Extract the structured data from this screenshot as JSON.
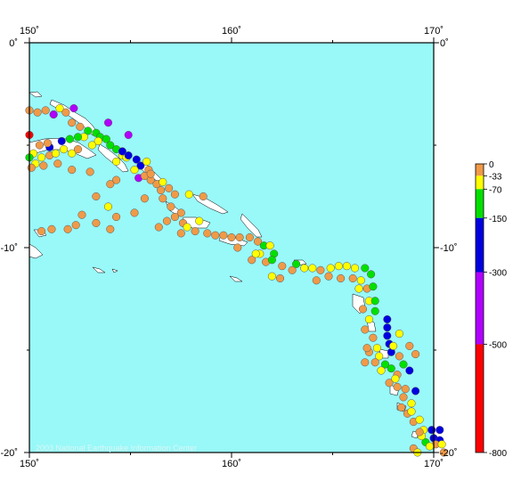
{
  "map": {
    "ocean_color": "#99f8f8",
    "land_color": "#ffffff",
    "frame_color": "#000000",
    "lon_range": [
      150,
      170
    ],
    "lat_range": [
      -20,
      0
    ],
    "lon_ticks": [
      {
        "value": 150,
        "label": "150˚"
      },
      {
        "value": 160,
        "label": "160˚"
      },
      {
        "value": 170,
        "label": "170˚"
      }
    ],
    "lat_ticks": [
      {
        "value": 0,
        "label": "0˚"
      },
      {
        "value": -10,
        "label": "-10˚"
      },
      {
        "value": -20,
        "label": "-20˚"
      }
    ],
    "credit": "2003 National Earthquake Information Center"
  },
  "legend": {
    "colors": {
      "shallow": "#f09a48",
      "c33": "#ffff00",
      "c70": "#00e000",
      "c150": "#0000e0",
      "c300": "#b000ff",
      "c500": "#ff0000"
    },
    "labels": [
      "0",
      "-33",
      "-70",
      "-150",
      "-300",
      "-500",
      "-800"
    ],
    "stops": [
      0,
      -33,
      -70,
      -150,
      -300,
      -500,
      -800
    ]
  },
  "events": [
    {
      "lon": 150.0,
      "lat": -3.3,
      "color": "orange"
    },
    {
      "lon": 150.4,
      "lat": -3.4,
      "color": "orange"
    },
    {
      "lon": 150.8,
      "lat": -3.3,
      "color": "orange"
    },
    {
      "lon": 151.2,
      "lat": -3.5,
      "color": "orange"
    },
    {
      "lon": 151.5,
      "lat": -3.2,
      "color": "yellow"
    },
    {
      "lon": 151.8,
      "lat": -3.4,
      "color": "orange"
    },
    {
      "lon": 151.2,
      "lat": -3.5,
      "color": "purple"
    },
    {
      "lon": 152.2,
      "lat": -3.2,
      "color": "purple"
    },
    {
      "lon": 153.9,
      "lat": -3.9,
      "color": "purple"
    },
    {
      "lon": 154.9,
      "lat": -4.5,
      "color": "purple"
    },
    {
      "lon": 152.1,
      "lat": -3.9,
      "color": "orange"
    },
    {
      "lon": 152.5,
      "lat": -4.1,
      "color": "orange"
    },
    {
      "lon": 152.9,
      "lat": -4.3,
      "color": "green"
    },
    {
      "lon": 153.3,
      "lat": -4.4,
      "color": "green"
    },
    {
      "lon": 153.5,
      "lat": -4.6,
      "color": "green"
    },
    {
      "lon": 153.8,
      "lat": -4.7,
      "color": "green"
    },
    {
      "lon": 153.4,
      "lat": -4.8,
      "color": "yellow"
    },
    {
      "lon": 153.1,
      "lat": -5.0,
      "color": "yellow"
    },
    {
      "lon": 152.7,
      "lat": -4.6,
      "color": "yellow"
    },
    {
      "lon": 152.4,
      "lat": -4.6,
      "color": "green"
    },
    {
      "lon": 152.0,
      "lat": -4.7,
      "color": "green"
    },
    {
      "lon": 151.6,
      "lat": -4.8,
      "color": "blue"
    },
    {
      "lon": 151.0,
      "lat": -5.1,
      "color": "blue"
    },
    {
      "lon": 150.9,
      "lat": -4.9,
      "color": "orange"
    },
    {
      "lon": 150.5,
      "lat": -5.0,
      "color": "orange"
    },
    {
      "lon": 150.2,
      "lat": -5.4,
      "color": "yellow"
    },
    {
      "lon": 150.6,
      "lat": -5.6,
      "color": "yellow"
    },
    {
      "lon": 151.0,
      "lat": -5.5,
      "color": "orange"
    },
    {
      "lon": 151.3,
      "lat": -5.4,
      "color": "yellow"
    },
    {
      "lon": 151.7,
      "lat": -5.2,
      "color": "yellow"
    },
    {
      "lon": 152.1,
      "lat": -5.4,
      "color": "yellow"
    },
    {
      "lon": 152.4,
      "lat": -5.2,
      "color": "orange"
    },
    {
      "lon": 150.3,
      "lat": -5.9,
      "color": "yellow"
    },
    {
      "lon": 150.7,
      "lat": -6.0,
      "color": "orange"
    },
    {
      "lon": 150.1,
      "lat": -6.1,
      "color": "orange"
    },
    {
      "lon": 151.4,
      "lat": -5.9,
      "color": "orange"
    },
    {
      "lon": 152.1,
      "lat": -6.2,
      "color": "orange"
    },
    {
      "lon": 153.0,
      "lat": -6.3,
      "color": "orange"
    },
    {
      "lon": 150.0,
      "lat": -5.6,
      "color": "green"
    },
    {
      "lon": 150.0,
      "lat": -4.5,
      "color": "red"
    },
    {
      "lon": 154.0,
      "lat": -5.0,
      "color": "green"
    },
    {
      "lon": 154.3,
      "lat": -5.2,
      "color": "green"
    },
    {
      "lon": 154.6,
      "lat": -5.5,
      "color": "yellow"
    },
    {
      "lon": 154.3,
      "lat": -5.8,
      "color": "yellow"
    },
    {
      "lon": 154.8,
      "lat": -5.6,
      "color": "yellow"
    },
    {
      "lon": 154.6,
      "lat": -5.3,
      "color": "blue"
    },
    {
      "lon": 154.9,
      "lat": -5.5,
      "color": "blue"
    },
    {
      "lon": 155.3,
      "lat": -5.7,
      "color": "blue"
    },
    {
      "lon": 155.5,
      "lat": -6.0,
      "color": "blue"
    },
    {
      "lon": 155.2,
      "lat": -6.2,
      "color": "yellow"
    },
    {
      "lon": 155.9,
      "lat": -6.2,
      "color": "orange"
    },
    {
      "lon": 155.4,
      "lat": -6.6,
      "color": "purple"
    },
    {
      "lon": 155.7,
      "lat": -6.5,
      "color": "orange"
    },
    {
      "lon": 156.0,
      "lat": -6.7,
      "color": "orange"
    },
    {
      "lon": 156.3,
      "lat": -6.9,
      "color": "orange"
    },
    {
      "lon": 156.6,
      "lat": -6.8,
      "color": "yellow"
    },
    {
      "lon": 156.9,
      "lat": -7.1,
      "color": "orange"
    },
    {
      "lon": 156.5,
      "lat": -7.2,
      "color": "orange"
    },
    {
      "lon": 157.2,
      "lat": -7.4,
      "color": "orange"
    },
    {
      "lon": 154.3,
      "lat": -6.7,
      "color": "orange"
    },
    {
      "lon": 154.0,
      "lat": -6.9,
      "color": "orange"
    },
    {
      "lon": 155.8,
      "lat": -5.8,
      "color": "yellow"
    },
    {
      "lon": 156.0,
      "lat": -6.4,
      "color": "orange"
    },
    {
      "lon": 156.6,
      "lat": -7.6,
      "color": "orange"
    },
    {
      "lon": 157.0,
      "lat": -8.0,
      "color": "orange"
    },
    {
      "lon": 157.5,
      "lat": -8.3,
      "color": "orange"
    },
    {
      "lon": 157.2,
      "lat": -8.5,
      "color": "orange"
    },
    {
      "lon": 156.8,
      "lat": -8.7,
      "color": "orange"
    },
    {
      "lon": 156.4,
      "lat": -9.0,
      "color": "orange"
    },
    {
      "lon": 157.6,
      "lat": -8.8,
      "color": "orange"
    },
    {
      "lon": 157.8,
      "lat": -9.0,
      "color": "yellow"
    },
    {
      "lon": 157.5,
      "lat": -9.3,
      "color": "orange"
    },
    {
      "lon": 157.9,
      "lat": -7.4,
      "color": "yellow"
    },
    {
      "lon": 158.6,
      "lat": -7.5,
      "color": "orange"
    },
    {
      "lon": 158.4,
      "lat": -8.7,
      "color": "yellow"
    },
    {
      "lon": 159.2,
      "lat": -9.4,
      "color": "orange"
    },
    {
      "lon": 159.6,
      "lat": -9.4,
      "color": "orange"
    },
    {
      "lon": 160.0,
      "lat": -9.5,
      "color": "orange"
    },
    {
      "lon": 160.4,
      "lat": -9.5,
      "color": "orange"
    },
    {
      "lon": 160.9,
      "lat": -9.5,
      "color": "orange"
    },
    {
      "lon": 161.3,
      "lat": -9.7,
      "color": "orange"
    },
    {
      "lon": 161.6,
      "lat": -9.9,
      "color": "green"
    },
    {
      "lon": 161.9,
      "lat": -9.9,
      "color": "yellow"
    },
    {
      "lon": 162.1,
      "lat": -10.3,
      "color": "green"
    },
    {
      "lon": 161.4,
      "lat": -10.3,
      "color": "yellow"
    },
    {
      "lon": 161.0,
      "lat": -10.6,
      "color": "orange"
    },
    {
      "lon": 161.7,
      "lat": -10.7,
      "color": "orange"
    },
    {
      "lon": 162.0,
      "lat": -10.6,
      "color": "green"
    },
    {
      "lon": 162.5,
      "lat": -10.9,
      "color": "orange"
    },
    {
      "lon": 163.0,
      "lat": -11.1,
      "color": "orange"
    },
    {
      "lon": 163.2,
      "lat": -10.8,
      "color": "green"
    },
    {
      "lon": 163.6,
      "lat": -11.0,
      "color": "yellow"
    },
    {
      "lon": 164.0,
      "lat": -11.0,
      "color": "yellow"
    },
    {
      "lon": 164.4,
      "lat": -11.1,
      "color": "orange"
    },
    {
      "lon": 164.9,
      "lat": -11.0,
      "color": "yellow"
    },
    {
      "lon": 165.3,
      "lat": -10.9,
      "color": "yellow"
    },
    {
      "lon": 165.7,
      "lat": -10.9,
      "color": "yellow"
    },
    {
      "lon": 166.1,
      "lat": -11.0,
      "color": "yellow"
    },
    {
      "lon": 166.6,
      "lat": -11.0,
      "color": "green"
    },
    {
      "lon": 166.9,
      "lat": -11.3,
      "color": "green"
    },
    {
      "lon": 166.4,
      "lat": -11.6,
      "color": "yellow"
    },
    {
      "lon": 166.0,
      "lat": -11.5,
      "color": "orange"
    },
    {
      "lon": 166.3,
      "lat": -12.0,
      "color": "yellow"
    },
    {
      "lon": 166.7,
      "lat": -12.0,
      "color": "orange"
    },
    {
      "lon": 167.0,
      "lat": -11.9,
      "color": "green"
    },
    {
      "lon": 166.8,
      "lat": -12.6,
      "color": "yellow"
    },
    {
      "lon": 167.1,
      "lat": -12.6,
      "color": "green"
    },
    {
      "lon": 166.5,
      "lat": -13.0,
      "color": "orange"
    },
    {
      "lon": 167.1,
      "lat": -13.1,
      "color": "green"
    },
    {
      "lon": 166.8,
      "lat": -13.5,
      "color": "yellow"
    },
    {
      "lon": 166.6,
      "lat": -14.0,
      "color": "orange"
    },
    {
      "lon": 167.0,
      "lat": -14.4,
      "color": "orange"
    },
    {
      "lon": 167.2,
      "lat": -14.9,
      "color": "yellow"
    },
    {
      "lon": 166.8,
      "lat": -15.1,
      "color": "orange"
    },
    {
      "lon": 166.6,
      "lat": -15.6,
      "color": "orange"
    },
    {
      "lon": 167.3,
      "lat": -15.3,
      "color": "yellow"
    },
    {
      "lon": 167.6,
      "lat": -15.7,
      "color": "green"
    },
    {
      "lon": 167.4,
      "lat": -16.0,
      "color": "yellow"
    },
    {
      "lon": 167.9,
      "lat": -15.9,
      "color": "green"
    },
    {
      "lon": 167.7,
      "lat": -13.5,
      "color": "blue"
    },
    {
      "lon": 167.7,
      "lat": -13.9,
      "color": "blue"
    },
    {
      "lon": 167.7,
      "lat": -14.3,
      "color": "blue"
    },
    {
      "lon": 167.8,
      "lat": -14.7,
      "color": "blue"
    },
    {
      "lon": 167.9,
      "lat": -15.1,
      "color": "blue"
    },
    {
      "lon": 168.3,
      "lat": -14.2,
      "color": "yellow"
    },
    {
      "lon": 168.0,
      "lat": -14.8,
      "color": "yellow"
    },
    {
      "lon": 168.3,
      "lat": -15.3,
      "color": "orange"
    },
    {
      "lon": 168.5,
      "lat": -15.7,
      "color": "green"
    },
    {
      "lon": 168.8,
      "lat": -16.0,
      "color": "blue"
    },
    {
      "lon": 168.2,
      "lat": -16.2,
      "color": "orange"
    },
    {
      "lon": 167.8,
      "lat": -16.6,
      "color": "orange"
    },
    {
      "lon": 168.2,
      "lat": -16.8,
      "color": "orange"
    },
    {
      "lon": 168.6,
      "lat": -16.9,
      "color": "orange"
    },
    {
      "lon": 169.1,
      "lat": -17.0,
      "color": "blue"
    },
    {
      "lon": 168.5,
      "lat": -17.3,
      "color": "orange"
    },
    {
      "lon": 168.9,
      "lat": -17.6,
      "color": "yellow"
    },
    {
      "lon": 168.4,
      "lat": -17.8,
      "color": "orange"
    },
    {
      "lon": 168.7,
      "lat": -18.1,
      "color": "orange"
    },
    {
      "lon": 169.0,
      "lat": -18.5,
      "color": "orange"
    },
    {
      "lon": 169.3,
      "lat": -18.4,
      "color": "yellow"
    },
    {
      "lon": 169.5,
      "lat": -18.9,
      "color": "yellow"
    },
    {
      "lon": 169.9,
      "lat": -18.9,
      "color": "blue"
    },
    {
      "lon": 170.3,
      "lat": -18.9,
      "color": "blue"
    },
    {
      "lon": 170.0,
      "lat": -19.3,
      "color": "blue"
    },
    {
      "lon": 170.3,
      "lat": -19.4,
      "color": "blue"
    },
    {
      "lon": 169.6,
      "lat": -19.5,
      "color": "green"
    },
    {
      "lon": 169.4,
      "lat": -19.2,
      "color": "yellow"
    },
    {
      "lon": 170.1,
      "lat": -19.6,
      "color": "orange"
    },
    {
      "lon": 169.8,
      "lat": -19.7,
      "color": "yellow"
    },
    {
      "lon": 169.0,
      "lat": -19.8,
      "color": "orange"
    },
    {
      "lon": 169.2,
      "lat": -20.0,
      "color": "yellow"
    },
    {
      "lon": 170.5,
      "lat": -20.0,
      "color": "orange"
    },
    {
      "lon": 170.4,
      "lat": -19.6,
      "color": "yellow"
    },
    {
      "lon": 152.3,
      "lat": -8.9,
      "color": "orange"
    },
    {
      "lon": 152.6,
      "lat": -8.4,
      "color": "orange"
    },
    {
      "lon": 151.9,
      "lat": -9.1,
      "color": "orange"
    },
    {
      "lon": 151.1,
      "lat": -9.1,
      "color": "orange"
    },
    {
      "lon": 150.6,
      "lat": -9.2,
      "color": "orange"
    },
    {
      "lon": 154.3,
      "lat": -8.5,
      "color": "orange"
    },
    {
      "lon": 154.0,
      "lat": -9.1,
      "color": "orange"
    },
    {
      "lon": 153.3,
      "lat": -8.8,
      "color": "orange"
    },
    {
      "lon": 155.2,
      "lat": -8.3,
      "color": "orange"
    },
    {
      "lon": 153.3,
      "lat": -7.5,
      "color": "orange"
    },
    {
      "lon": 153.9,
      "lat": -8.0,
      "color": "yellow"
    },
    {
      "lon": 155.7,
      "lat": -7.6,
      "color": "orange"
    },
    {
      "lon": 158.2,
      "lat": -9.2,
      "color": "orange"
    },
    {
      "lon": 158.8,
      "lat": -9.3,
      "color": "orange"
    },
    {
      "lon": 160.3,
      "lat": -10.0,
      "color": "orange"
    },
    {
      "lon": 161.2,
      "lat": -10.3,
      "color": "yellow"
    },
    {
      "lon": 162.0,
      "lat": -11.4,
      "color": "yellow"
    },
    {
      "lon": 162.4,
      "lat": -11.5,
      "color": "orange"
    },
    {
      "lon": 164.8,
      "lat": -11.4,
      "color": "orange"
    },
    {
      "lon": 165.4,
      "lat": -11.5,
      "color": "orange"
    },
    {
      "lon": 164.2,
      "lat": -11.6,
      "color": "orange"
    },
    {
      "lon": 166.7,
      "lat": -14.9,
      "color": "orange"
    },
    {
      "lon": 167.1,
      "lat": -15.6,
      "color": "orange"
    },
    {
      "lon": 168.8,
      "lat": -14.8,
      "color": "orange"
    },
    {
      "lon": 169.1,
      "lat": -15.2,
      "color": "orange"
    },
    {
      "lon": 168.1,
      "lat": -16.4,
      "color": "yellow"
    },
    {
      "lon": 168.9,
      "lat": -18.0,
      "color": "yellow"
    },
    {
      "lon": 169.3,
      "lat": -19.0,
      "color": "orange"
    }
  ]
}
